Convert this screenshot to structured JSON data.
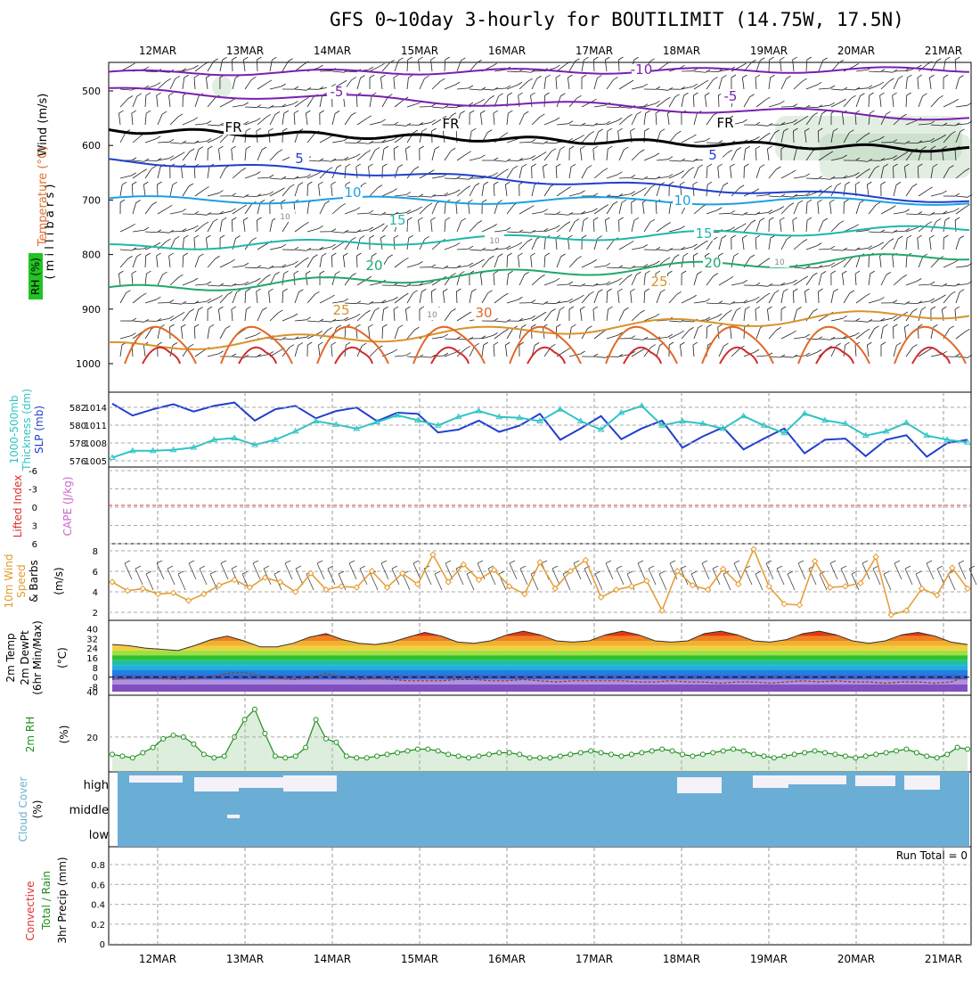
{
  "title": "GFS 0~10day 3-hourly for BOUTILIMIT (14.75W, 17.5N)",
  "dates": [
    "12MAR",
    "13MAR",
    "14MAR",
    "15MAR",
    "16MAR",
    "17MAR",
    "18MAR",
    "19MAR",
    "20MAR",
    "21MAR"
  ],
  "colors": {
    "slp": "#1f3fcf",
    "thickness": "#2ec4c4",
    "wind": "#e59a2e",
    "rh": "#1f8f1f",
    "cloud": "#6aaed6",
    "cape": "#cc66cc",
    "li": "#e03030",
    "freezing": "#000000",
    "t_neg10": "#7a1fb0",
    "t_neg5": "#7a1fb0",
    "t5": "#1f3fcf",
    "t10": "#1f9fe0",
    "t15": "#1fb8a8",
    "t20": "#1fa86a",
    "t25": "#d9922a",
    "t30": "#e06a2a",
    "t35": "#d02a2a"
  },
  "panels": {
    "upper": {
      "y_label_wind": "Wind (m/s)",
      "y_label_temp": "Temperature (°C)",
      "y_label_rh": "RH (%)",
      "y_label_p": "( m i l l i b a r s )",
      "pressure_ticks": [
        "500",
        "600",
        "700",
        "800",
        "900",
        "1000"
      ],
      "freeze_label": "FR",
      "contour_labels": [
        "-10",
        "-5",
        "-5",
        "FR",
        "FR",
        "FR",
        "5",
        "5",
        "10",
        "10",
        "15",
        "15",
        "20",
        "20",
        "25",
        "25",
        "30",
        "10",
        "10",
        "10",
        "10"
      ]
    },
    "slp": {
      "y_label_a": "Thickness (dm)",
      "y_label_a2": "1000-500mb",
      "y_label_b": "SLP (mb)",
      "left_ticks": [
        "582",
        "580",
        "578",
        "576"
      ],
      "right_ticks": [
        "1014",
        "1011",
        "1008",
        "1005"
      ]
    },
    "cape": {
      "y_label_a": "Lifted Index",
      "y_label_b": "CAPE (J/kg)",
      "ticks": [
        "-6",
        "-3",
        "0",
        "3",
        "6"
      ]
    },
    "wind10": {
      "y_label_a": "10m Wind",
      "y_label_b": "Speed",
      "y_label_c": "& Barbs",
      "y_label_d": "(m/s)",
      "ticks": [
        "8",
        "6",
        "4",
        "2"
      ]
    },
    "temp": {
      "y_label_a": "2m Temp",
      "y_label_b": "2m DewPt",
      "y_label_c": "(6hr Min/Max)",
      "y_label_d": "(°C)",
      "ticks": [
        "40",
        "32",
        "24",
        "16",
        "8",
        "0",
        "-8",
        "40"
      ]
    },
    "rh": {
      "y_label_a": "2m RH",
      "y_label_b": "(%)",
      "ticks": [
        "20"
      ]
    },
    "cloud": {
      "y_label_a": "Cloud Cover",
      "y_label_b": "(%)",
      "levels": [
        "high",
        "middle",
        "low"
      ]
    },
    "precip": {
      "y_label_a": "3hr Precip (mm)",
      "y_label_b": "Total / Rain",
      "y_label_c": "Convective",
      "run_total": "Run Total = 0",
      "ticks": [
        "0.8",
        "0.6",
        "0.4",
        "0.2",
        "0"
      ]
    }
  },
  "chart_data": [
    {
      "type": "line",
      "name": "slp_thickness",
      "x_start": "11MAR 12Z",
      "x_step_hours": 6,
      "series": [
        {
          "name": "SLP (mb)",
          "ylim": [
            1004,
            1016
          ],
          "values": [
            1014.6,
            1012.5,
            1013.6,
            1014.5,
            1013.2,
            1014.2,
            1014.8,
            1011.6,
            1013.6,
            1014.2,
            1012.0,
            1013.3,
            1013.9,
            1011.5,
            1013.0,
            1012.8,
            1009.5,
            1010.0,
            1011.6,
            1009.6,
            1010.7,
            1012.8,
            1008.2,
            1010.2,
            1012.4,
            1008.3,
            1010.2,
            1011.6,
            1006.8,
            1008.8,
            1010.4,
            1006.5,
            1008.4,
            1010.2,
            1005.8,
            1008.2,
            1008.4,
            1005.3,
            1008.2,
            1009.0,
            1005.2,
            1007.6,
            1008.2
          ]
        },
        {
          "name": "1000-500mb Thickness (dm)",
          "ylim": [
            575.6,
            583.6
          ],
          "values": [
            576.3,
            577.1,
            577.1,
            577.2,
            577.5,
            578.4,
            578.6,
            577.8,
            578.4,
            579.4,
            580.6,
            580.2,
            579.7,
            580.5,
            581.3,
            580.7,
            580.1,
            581.1,
            581.8,
            581.1,
            581.0,
            580.6,
            582.0,
            580.6,
            579.6,
            581.6,
            582.4,
            580.1,
            580.6,
            580.3,
            579.7,
            581.2,
            580.1,
            579.2,
            581.5,
            580.7,
            580.3,
            578.9,
            579.4,
            580.4,
            578.9,
            578.4,
            578.1
          ]
        }
      ]
    },
    {
      "type": "line",
      "name": "wind_speed_10m",
      "ylim": [
        1.5,
        8.5
      ],
      "values": [
        5.0,
        4.2,
        4.4,
        3.9,
        4.0,
        3.3,
        3.9,
        4.7,
        5.2,
        4.5,
        5.4,
        5.0,
        4.1,
        5.8,
        4.3,
        4.6,
        4.5,
        6.0,
        4.5,
        5.8,
        4.8,
        7.5,
        5.0,
        6.6,
        5.2,
        6.1,
        4.6,
        3.9,
        6.8,
        4.4,
        6.0,
        7.0,
        3.6,
        4.3,
        4.6,
        5.1,
        2.4,
        6.0,
        4.7,
        4.3,
        6.2,
        4.8,
        8.0,
        4.6,
        3.0,
        2.9,
        6.9,
        4.5,
        4.6,
        4.9,
        7.3,
        2.0,
        2.4,
        4.4,
        3.8,
        6.3,
        4.4
      ]
    },
    {
      "type": "area",
      "name": "temp_2m",
      "ylim": [
        -12,
        44
      ],
      "temp": [
        27,
        26,
        24,
        23,
        22,
        26,
        31,
        34,
        30,
        25,
        25,
        28,
        33,
        36,
        31,
        28,
        27,
        29,
        33,
        37,
        34,
        29,
        28,
        30,
        35,
        38,
        35,
        30,
        29,
        30,
        35,
        38,
        35,
        30,
        29,
        30,
        36,
        38,
        35,
        30,
        29,
        31,
        36,
        38,
        35,
        30,
        28,
        30,
        35,
        37,
        34,
        29,
        27
      ],
      "dewpt": [
        -2,
        -1,
        0,
        -1,
        -2,
        -1,
        0,
        3,
        4,
        1,
        -1,
        -2,
        -1,
        3,
        0,
        -2,
        -1,
        -2,
        -3,
        -3,
        -3,
        -2,
        -2,
        -3,
        -3,
        -2,
        -3,
        -4,
        -3,
        -3,
        -3,
        -3,
        -4,
        -4,
        -3,
        -4,
        -4,
        -5,
        -4,
        -4,
        -5,
        -4,
        -3,
        -4,
        -3,
        -4,
        -4,
        -5,
        -4,
        -4,
        -5,
        -4,
        1
      ]
    },
    {
      "type": "area",
      "name": "rh_2m",
      "ylim": [
        2,
        42
      ],
      "values": [
        10,
        9,
        8,
        11,
        14,
        19,
        21,
        20,
        16,
        10,
        8,
        9,
        20,
        30,
        36,
        22,
        9,
        8,
        9,
        14,
        30,
        19,
        17,
        9,
        8,
        8,
        9,
        10,
        11,
        12,
        13,
        13,
        12,
        10,
        9,
        8,
        9,
        10,
        11,
        11,
        10,
        8,
        8,
        8,
        9,
        10,
        11,
        12,
        11,
        10,
        9,
        10,
        11,
        12,
        13,
        12,
        10,
        9,
        10,
        11,
        12,
        13,
        12,
        10,
        9,
        8,
        9,
        10,
        11,
        12,
        11,
        10,
        9,
        8,
        9,
        10,
        11,
        12,
        13,
        11,
        9,
        8,
        10,
        14,
        13
      ]
    }
  ]
}
